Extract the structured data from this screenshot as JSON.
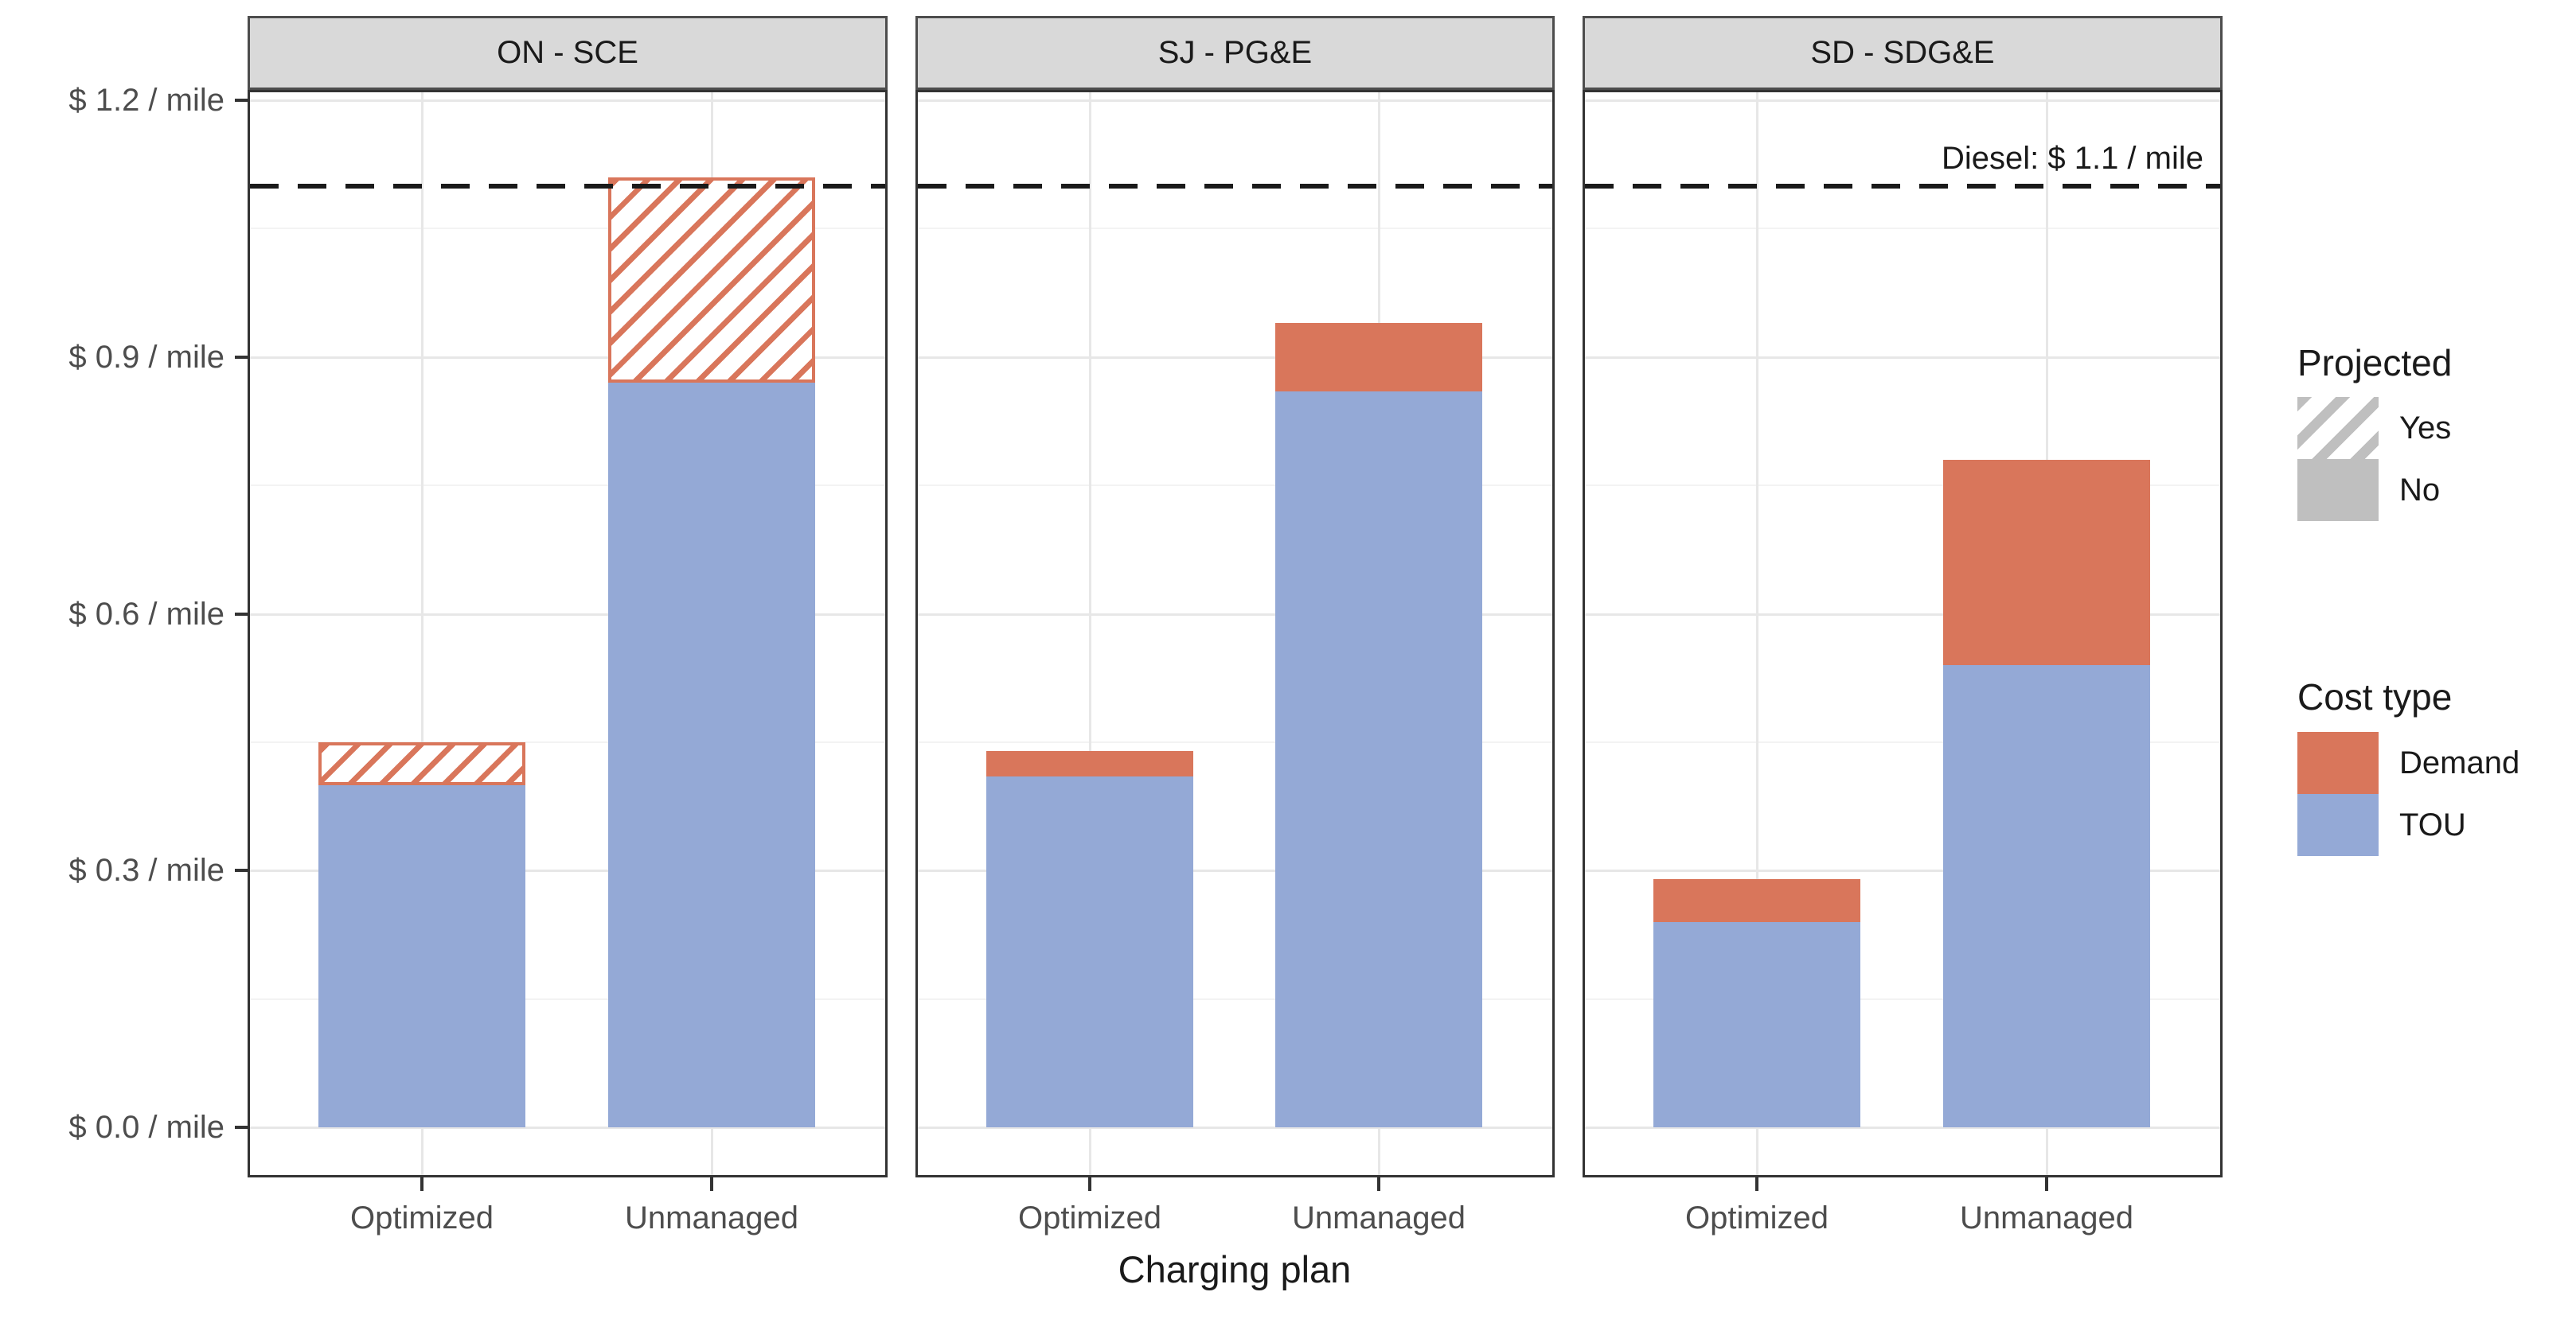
{
  "chart_data": {
    "type": "bar",
    "stacked": true,
    "facets": [
      {
        "label": "ON - SCE",
        "bars": [
          {
            "category": "Optimized",
            "tou": 0.4,
            "demand": 0.05,
            "demand_projected": true
          },
          {
            "category": "Unmanaged",
            "tou": 0.87,
            "demand": 0.24,
            "demand_projected": true
          }
        ]
      },
      {
        "label": "SJ - PG&E",
        "bars": [
          {
            "category": "Optimized",
            "tou": 0.41,
            "demand": 0.03,
            "demand_projected": false
          },
          {
            "category": "Unmanaged",
            "tou": 0.86,
            "demand": 0.08,
            "demand_projected": false
          }
        ]
      },
      {
        "label": "SD - SDG&E",
        "bars": [
          {
            "category": "Optimized",
            "tou": 0.24,
            "demand": 0.05,
            "demand_projected": false
          },
          {
            "category": "Unmanaged",
            "tou": 0.54,
            "demand": 0.24,
            "demand_projected": false
          }
        ]
      }
    ],
    "x_axis": {
      "title": "Charging plan",
      "categories": [
        "Optimized",
        "Unmanaged"
      ]
    },
    "y_axis": {
      "ticks": [
        {
          "value": 1.2,
          "label": "$ 1.2 / mile"
        },
        {
          "value": 0.9,
          "label": "$ 0.9 / mile"
        },
        {
          "value": 0.6,
          "label": "$ 0.6 / mile"
        },
        {
          "value": 0.3,
          "label": "$ 0.3 / mile"
        },
        {
          "value": 0.0,
          "label": "$ 0.0 / mile"
        }
      ],
      "minor_ticks": [
        1.05,
        0.75,
        0.45,
        0.15
      ],
      "range": [
        -0.06,
        1.21
      ],
      "grid": true
    },
    "reference_line": {
      "value": 1.1,
      "label": "Diesel: $ 1.1 / mile",
      "style": "dashed"
    },
    "legend": {
      "position": "right",
      "projected": {
        "title": "Projected",
        "items": [
          {
            "label": "Yes",
            "swatch": "hatched"
          },
          {
            "label": "No",
            "swatch": "solid-gray"
          }
        ]
      },
      "cost_type": {
        "title": "Cost type",
        "items": [
          {
            "label": "Demand",
            "swatch": "solid-demand"
          },
          {
            "label": "TOU",
            "swatch": "solid-tou"
          }
        ]
      }
    },
    "colors": {
      "demand": "#D9765B",
      "tou": "#94A9D6",
      "projected_no_gray": "#BFBFBF",
      "strip_background": "#D9D9D9",
      "grid_major": "#E7E7E7",
      "grid_minor": "#F3F3F3",
      "axis_text": "#4D4D4D",
      "reference_line": "#1A1A1A"
    }
  }
}
